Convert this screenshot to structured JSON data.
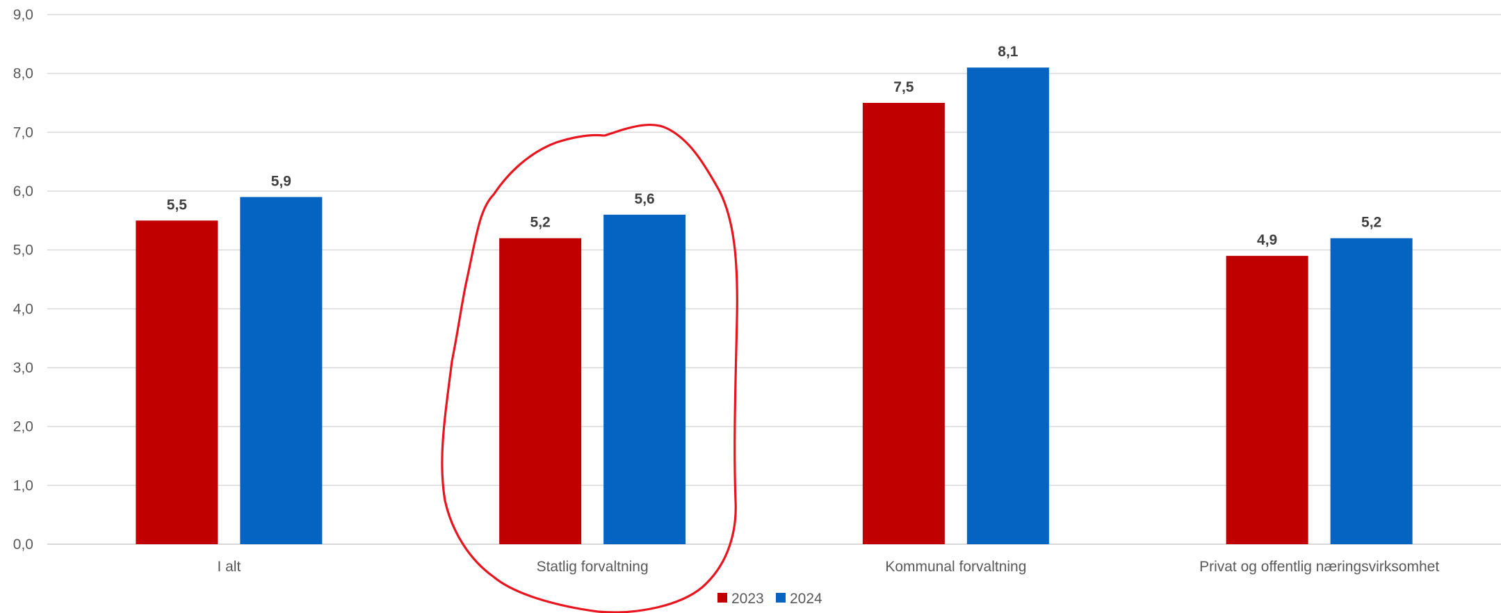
{
  "chart_data": {
    "type": "bar",
    "categories": [
      "I alt",
      "Statlig forvaltning",
      "Kommunal forvaltning",
      "Privat og offentlig næringsvirksomhet"
    ],
    "series": [
      {
        "name": "2023",
        "values": [
          5.5,
          5.2,
          7.5,
          4.9
        ],
        "color": "#C00000"
      },
      {
        "name": "2024",
        "values": [
          5.9,
          5.6,
          8.1,
          5.2
        ],
        "color": "#0563C1"
      }
    ],
    "data_labels": [
      [
        "5,5",
        "5,2",
        "7,5",
        "4,9"
      ],
      [
        "5,9",
        "5,6",
        "8,1",
        "5,2"
      ]
    ],
    "y_ticks": [
      "0,0",
      "1,0",
      "2,0",
      "3,0",
      "4,0",
      "5,0",
      "6,0",
      "7,0",
      "8,0",
      "9,0"
    ],
    "ylim": [
      0,
      9
    ],
    "grid": true,
    "legend_position": "bottom",
    "title": "",
    "xlabel": "",
    "ylabel": "",
    "annotation": {
      "type": "hand-drawn-circle",
      "target_category": "Statlig forvaltning",
      "color": "#E8141E"
    },
    "colors": {
      "gridline": "#D9D9D9",
      "text": "#595959",
      "data_label": "#404040"
    }
  }
}
